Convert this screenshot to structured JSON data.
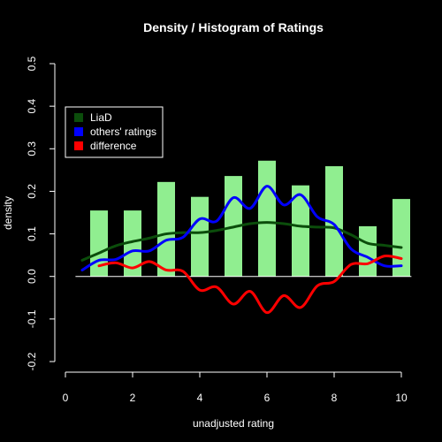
{
  "chart_data": {
    "type": "bar",
    "title": "Density / Histogram of Ratings",
    "xlabel": "unadjusted rating",
    "ylabel": "density",
    "xlim": [
      0,
      10
    ],
    "ylim": [
      -0.2,
      0.5
    ],
    "x_ticks": [
      0,
      2,
      4,
      6,
      8,
      10
    ],
    "y_ticks": [
      -0.2,
      -0.1,
      0.0,
      0.1,
      0.2,
      0.3,
      0.4,
      0.5
    ],
    "x_tick_labels": [
      "0",
      "2",
      "4",
      "6",
      "8",
      "10"
    ],
    "y_tick_labels": [
      "-0.2",
      "-0.1",
      "0.0",
      "0.1",
      "0.2",
      "0.3",
      "0.4",
      "0.5"
    ],
    "grid": false,
    "legend_position": "top-left",
    "legend": [
      {
        "label": "LiaD",
        "color": "#0b4d0b"
      },
      {
        "label": "others' ratings",
        "color": "#0000ff"
      },
      {
        "label": "difference",
        "color": "#ff0000"
      }
    ],
    "histogram": {
      "color": "#90ee90",
      "bin_centers": [
        1,
        2,
        3,
        4,
        5,
        6,
        7,
        8,
        9,
        10
      ],
      "values": [
        0.155,
        0.155,
        0.222,
        0.187,
        0.236,
        0.272,
        0.214,
        0.259,
        0.118,
        0.182
      ]
    },
    "series": [
      {
        "name": "LiaD",
        "color": "#0b4d0b",
        "x": [
          0.5,
          1.0,
          1.5,
          2.0,
          2.5,
          3.0,
          3.5,
          4.0,
          4.5,
          5.0,
          5.5,
          6.0,
          6.5,
          7.0,
          7.5,
          8.0,
          8.5,
          9.0,
          9.5,
          10.0
        ],
        "y": [
          0.038,
          0.055,
          0.072,
          0.082,
          0.09,
          0.1,
          0.103,
          0.103,
          0.108,
          0.116,
          0.124,
          0.127,
          0.124,
          0.118,
          0.116,
          0.114,
          0.098,
          0.078,
          0.073,
          0.068
        ]
      },
      {
        "name": "others' ratings",
        "color": "#0000ff",
        "x": [
          0.5,
          1.0,
          1.5,
          2.0,
          2.5,
          3.0,
          3.5,
          4.0,
          4.5,
          5.0,
          5.5,
          6.0,
          6.5,
          7.0,
          7.5,
          8.0,
          8.5,
          9.0,
          9.5,
          10.0
        ],
        "y": [
          0.015,
          0.038,
          0.04,
          0.06,
          0.06,
          0.085,
          0.092,
          0.135,
          0.13,
          0.185,
          0.16,
          0.212,
          0.168,
          0.192,
          0.14,
          0.122,
          0.065,
          0.045,
          0.025,
          0.025
        ]
      },
      {
        "name": "difference",
        "color": "#ff0000",
        "x": [
          1.0,
          1.5,
          2.0,
          2.5,
          3.0,
          3.5,
          4.0,
          4.5,
          5.0,
          5.5,
          6.0,
          6.5,
          7.0,
          7.5,
          8.0,
          8.5,
          9.0,
          9.5,
          10.0
        ],
        "y": [
          0.025,
          0.032,
          0.02,
          0.035,
          0.015,
          0.012,
          -0.032,
          -0.025,
          -0.065,
          -0.035,
          -0.085,
          -0.045,
          -0.073,
          -0.022,
          -0.012,
          0.028,
          0.03,
          0.048,
          0.042
        ]
      }
    ]
  }
}
